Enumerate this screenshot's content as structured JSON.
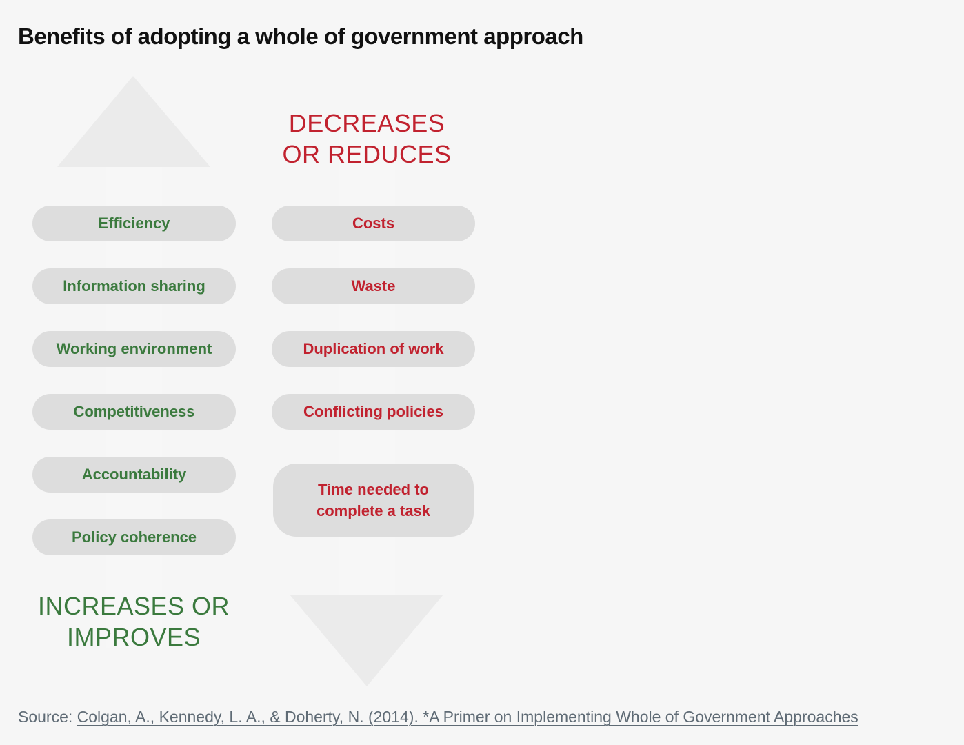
{
  "title": "Benefits of adopting a whole of government approach",
  "colors": {
    "background": "#f6f6f6",
    "green": "#3b7a3e",
    "red": "#c1222f",
    "pill": "#dddddd",
    "arrow": "#ebebeb"
  },
  "increases": {
    "heading_line1": "INCREASES OR",
    "heading_line2": "IMPROVES",
    "arrow_icon": "up-arrow-icon",
    "items": [
      "Efficiency",
      "Information sharing",
      "Working environment",
      "Competitiveness",
      "Accountability",
      "Policy coherence"
    ]
  },
  "decreases": {
    "heading_line1": "DECREASES",
    "heading_line2": "OR REDUCES",
    "arrow_icon": "down-arrow-icon",
    "items": [
      "Costs",
      "Waste",
      "Duplication of work",
      "Conflicting policies"
    ],
    "tall_item_line1": "Time needed to",
    "tall_item_line2": "complete a task"
  },
  "source": {
    "label": "Source:",
    "link_text": "Colgan, A., Kennedy, L. A., & Doherty, N. (2014). *A Primer on Implementing Whole of Government Approaches"
  }
}
